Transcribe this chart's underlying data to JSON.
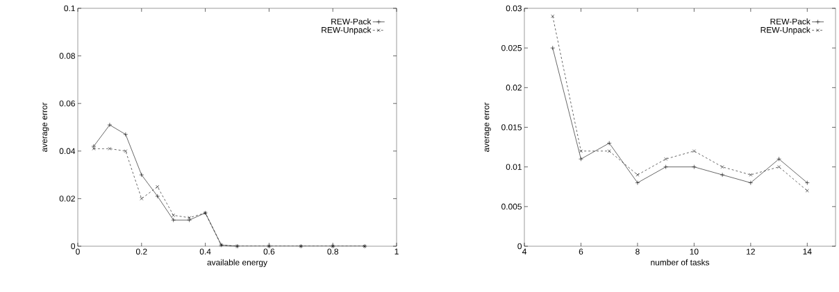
{
  "chart_data": [
    {
      "type": "line",
      "xlabel": "available energy",
      "ylabel": "average error",
      "x": [
        0.05,
        0.1,
        0.15,
        0.2,
        0.25,
        0.3,
        0.35,
        0.4,
        0.45,
        0.5,
        0.6,
        0.7,
        0.8,
        0.9
      ],
      "series": [
        {
          "name": "REW-Pack",
          "color": "#000000",
          "line_style": "solid",
          "marker": "plus",
          "values": [
            0.042,
            0.051,
            0.047,
            0.03,
            0.021,
            0.011,
            0.011,
            0.014,
            0.0005,
            0,
            0,
            0,
            0,
            0
          ]
        },
        {
          "name": "REW-Unpack",
          "color": "#000000",
          "line_style": "dashed",
          "marker": "cross",
          "values": [
            0.041,
            0.041,
            0.04,
            0.02,
            0.025,
            0.013,
            0.012,
            0.014,
            0.0005,
            0,
            0,
            0,
            0,
            0
          ]
        }
      ],
      "xlim": [
        0,
        1
      ],
      "ylim": [
        0,
        0.1
      ],
      "xticks": [
        0,
        0.2,
        0.4,
        0.6,
        0.8,
        1
      ],
      "yticks": [
        0,
        0.02,
        0.04,
        0.06,
        0.08,
        0.1
      ],
      "grid": false,
      "legend": "top right"
    },
    {
      "type": "line",
      "xlabel": "number of tasks",
      "ylabel": "average error",
      "x": [
        5,
        6,
        7,
        8,
        9,
        10,
        11,
        12,
        13,
        14
      ],
      "series": [
        {
          "name": "REW-Pack",
          "color": "#000000",
          "line_style": "solid",
          "marker": "plus",
          "values": [
            0.025,
            0.011,
            0.013,
            0.008,
            0.01,
            0.01,
            0.009,
            0.008,
            0.011,
            0.008
          ]
        },
        {
          "name": "REW-Unpack",
          "color": "#000000",
          "line_style": "dashed",
          "marker": "cross",
          "values": [
            0.029,
            0.012,
            0.012,
            0.009,
            0.011,
            0.012,
            0.01,
            0.009,
            0.01,
            0.007
          ]
        }
      ],
      "xlim": [
        4,
        15
      ],
      "ylim": [
        0,
        0.03
      ],
      "xticks": [
        4,
        6,
        8,
        10,
        12,
        14
      ],
      "yticks": [
        0,
        0.005,
        0.01,
        0.015,
        0.02,
        0.025,
        0.03
      ],
      "grid": false,
      "legend": "top right"
    }
  ]
}
